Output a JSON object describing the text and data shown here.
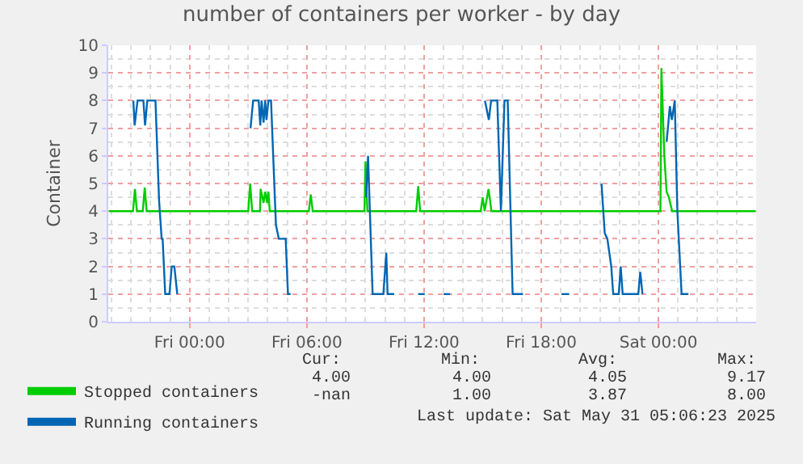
{
  "chart_data": {
    "type": "line",
    "title": "number of containers per worker - by day",
    "ylabel": "Container",
    "xlim": [
      "2025-05-29T19:50",
      "2025-05-31T05:00"
    ],
    "xticks": [
      {
        "value": "2025-05-30T00:00",
        "label": "Fri 00:00"
      },
      {
        "value": "2025-05-30T06:00",
        "label": "Fri 06:00"
      },
      {
        "value": "2025-05-30T12:00",
        "label": "Fri 12:00"
      },
      {
        "value": "2025-05-30T18:00",
        "label": "Fri 18:00"
      },
      {
        "value": "2025-05-31T00:00",
        "label": "Sat 00:00"
      }
    ],
    "ylim": [
      0,
      10
    ],
    "yticks": [
      0,
      1,
      2,
      3,
      4,
      5,
      6,
      7,
      8,
      9,
      10
    ],
    "grid": true,
    "legend": "bottom",
    "marker": "none",
    "line_style": "solid",
    "series": [
      {
        "name": "Stopped containers",
        "color": "#00cc00",
        "x": [
          "2025-05-29T19:52",
          "2025-05-29T21:06",
          "2025-05-29T21:12",
          "2025-05-29T21:18",
          "2025-05-29T21:36",
          "2025-05-29T21:42",
          "2025-05-29T21:48",
          "2025-05-30T03:00",
          "2025-05-30T03:06",
          "2025-05-30T03:12",
          "2025-05-30T03:36",
          "2025-05-30T03:38",
          "2025-05-30T03:47",
          "2025-05-30T03:52",
          "2025-05-30T03:58",
          "2025-05-30T04:02",
          "2025-05-30T04:06",
          "2025-05-30T06:06",
          "2025-05-30T06:12",
          "2025-05-30T06:18",
          "2025-05-30T08:57",
          "2025-05-30T09:00",
          "2025-05-30T09:06",
          "2025-05-30T11:36",
          "2025-05-30T11:42",
          "2025-05-30T11:48",
          "2025-05-30T14:54",
          "2025-05-30T15:00",
          "2025-05-30T15:06",
          "2025-05-30T15:18",
          "2025-05-30T15:27",
          "2025-05-31T00:06",
          "2025-05-31T00:09",
          "2025-05-31T00:18",
          "2025-05-31T00:25",
          "2025-05-31T00:32",
          "2025-05-31T00:42",
          "2025-05-31T04:59"
        ],
        "values": [
          4,
          4,
          4.8,
          4,
          4,
          4.85,
          4,
          4,
          5.0,
          4,
          4,
          4.8,
          4.3,
          4.7,
          4.3,
          4.7,
          4,
          4,
          4.6,
          4,
          4,
          5.8,
          4,
          4,
          4.9,
          4,
          4,
          4.5,
          4,
          4.8,
          4,
          4,
          9.17,
          6,
          4.7,
          4.5,
          4,
          4
        ]
      },
      {
        "name": "Running containers",
        "color": "#0066b3",
        "x": [
          "2025-05-29T21:07",
          "2025-05-29T21:11",
          "2025-05-29T21:20",
          "2025-05-29T21:38",
          "2025-05-29T21:43",
          "2025-05-29T21:50",
          "2025-05-29T22:15",
          "2025-05-29T22:26",
          "2025-05-29T22:34",
          "2025-05-29T22:37",
          "2025-05-29T22:45",
          "2025-05-29T22:58",
          "2025-05-29T23:05",
          "2025-05-29T23:13",
          "2025-05-29T23:22",
          "2025-05-30T01:00",
          "2025-05-30T03:07",
          "2025-05-30T03:15",
          "2025-05-30T03:32",
          "2025-05-30T03:37",
          "2025-05-30T03:41",
          "2025-05-30T03:47",
          "2025-05-30T03:52",
          "2025-05-30T03:56",
          "2025-05-30T04:02",
          "2025-05-30T04:10",
          "2025-05-30T04:25",
          "2025-05-30T04:34",
          "2025-05-30T04:55",
          "2025-05-30T05:02",
          "2025-05-30T05:10",
          "2025-05-30T07:00",
          "2025-05-30T09:02",
          "2025-05-30T09:08",
          "2025-05-30T09:22",
          "2025-05-30T09:55",
          "2025-05-30T10:04",
          "2025-05-30T10:08",
          "2025-05-30T10:28",
          "2025-05-30T11:00",
          "2025-05-30T11:42",
          "2025-05-30T12:02",
          "2025-05-30T12:30",
          "2025-05-30T13:00",
          "2025-05-30T13:20",
          "2025-05-30T14:00",
          "2025-05-30T15:07",
          "2025-05-30T15:19",
          "2025-05-30T15:26",
          "2025-05-30T15:45",
          "2025-05-30T15:56",
          "2025-05-30T16:07",
          "2025-05-30T16:17",
          "2025-05-30T16:32",
          "2025-05-30T17:04",
          "2025-05-30T18:00",
          "2025-05-30T19:02",
          "2025-05-30T19:26",
          "2025-05-30T20:00",
          "2025-05-30T21:05",
          "2025-05-30T21:15",
          "2025-05-30T21:23",
          "2025-05-30T21:35",
          "2025-05-30T21:41",
          "2025-05-30T21:58",
          "2025-05-30T22:04",
          "2025-05-30T22:10",
          "2025-05-30T22:58",
          "2025-05-30T23:04",
          "2025-05-30T23:11",
          "2025-05-30T23:48",
          "2025-05-31T00:25",
          "2025-05-31T00:35",
          "2025-05-31T00:41",
          "2025-05-31T00:50",
          "2025-05-31T00:58",
          "2025-05-31T01:11",
          "2025-05-31T01:32"
        ],
        "values": [
          8,
          7.1,
          8,
          8,
          7.1,
          8,
          8,
          4.4,
          3,
          3,
          1,
          1,
          2,
          2,
          1,
          null,
          7,
          8,
          8,
          7.1,
          8,
          7.2,
          8,
          7.3,
          8,
          8,
          3.5,
          3,
          3,
          1,
          1,
          null,
          4.5,
          6,
          1,
          1,
          2.5,
          1,
          1,
          null,
          1,
          1,
          null,
          1,
          1,
          null,
          8,
          7.3,
          8,
          8,
          4.0,
          8,
          8,
          1,
          1,
          null,
          1,
          1,
          null,
          5,
          3.2,
          3,
          2,
          1,
          1,
          2,
          1,
          1,
          1.8,
          1,
          null,
          6.5,
          7.8,
          7.3,
          8,
          4,
          1,
          1
        ]
      }
    ],
    "annotations": [
      "Cur:",
      "Min:",
      "Avg:",
      "Max:",
      "4.00",
      "4.00",
      "4.05",
      "9.17",
      "-nan",
      "1.00",
      "3.87",
      "8.00",
      "Last update: Sat May 31 05:06:23 2025"
    ]
  }
}
